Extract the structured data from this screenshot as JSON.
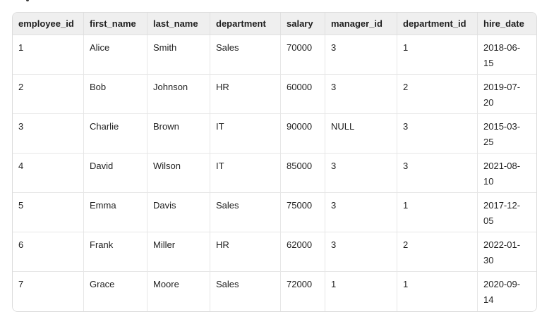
{
  "page": {
    "background": "#ffffff"
  },
  "table": {
    "columns": [
      "employee_id",
      "first_name",
      "last_name",
      "department",
      "salary",
      "manager_id",
      "department_id",
      "hire_date"
    ],
    "rows": [
      [
        "1",
        "Alice",
        "Smith",
        "Sales",
        "70000",
        "3",
        "1",
        "2018-06-15"
      ],
      [
        "2",
        "Bob",
        "Johnson",
        "HR",
        "60000",
        "3",
        "2",
        "2019-07-20"
      ],
      [
        "3",
        "Charlie",
        "Brown",
        "IT",
        "90000",
        "NULL",
        "3",
        "2015-03-25"
      ],
      [
        "4",
        "David",
        "Wilson",
        "IT",
        "85000",
        "3",
        "3",
        "2021-08-10"
      ],
      [
        "5",
        "Emma",
        "Davis",
        "Sales",
        "75000",
        "3",
        "1",
        "2017-12-05"
      ],
      [
        "6",
        "Frank",
        "Miller",
        "HR",
        "62000",
        "3",
        "2",
        "2022-01-30"
      ],
      [
        "7",
        "Grace",
        "Moore",
        "Sales",
        "72000",
        "1",
        "1",
        "2020-09-14"
      ]
    ],
    "colors": {
      "header_bg": "#efefef",
      "border": "#e0e0e0",
      "outer_border": "#dcdcdc",
      "text": "#1f1f1f",
      "row_bg": "#ffffff"
    }
  }
}
